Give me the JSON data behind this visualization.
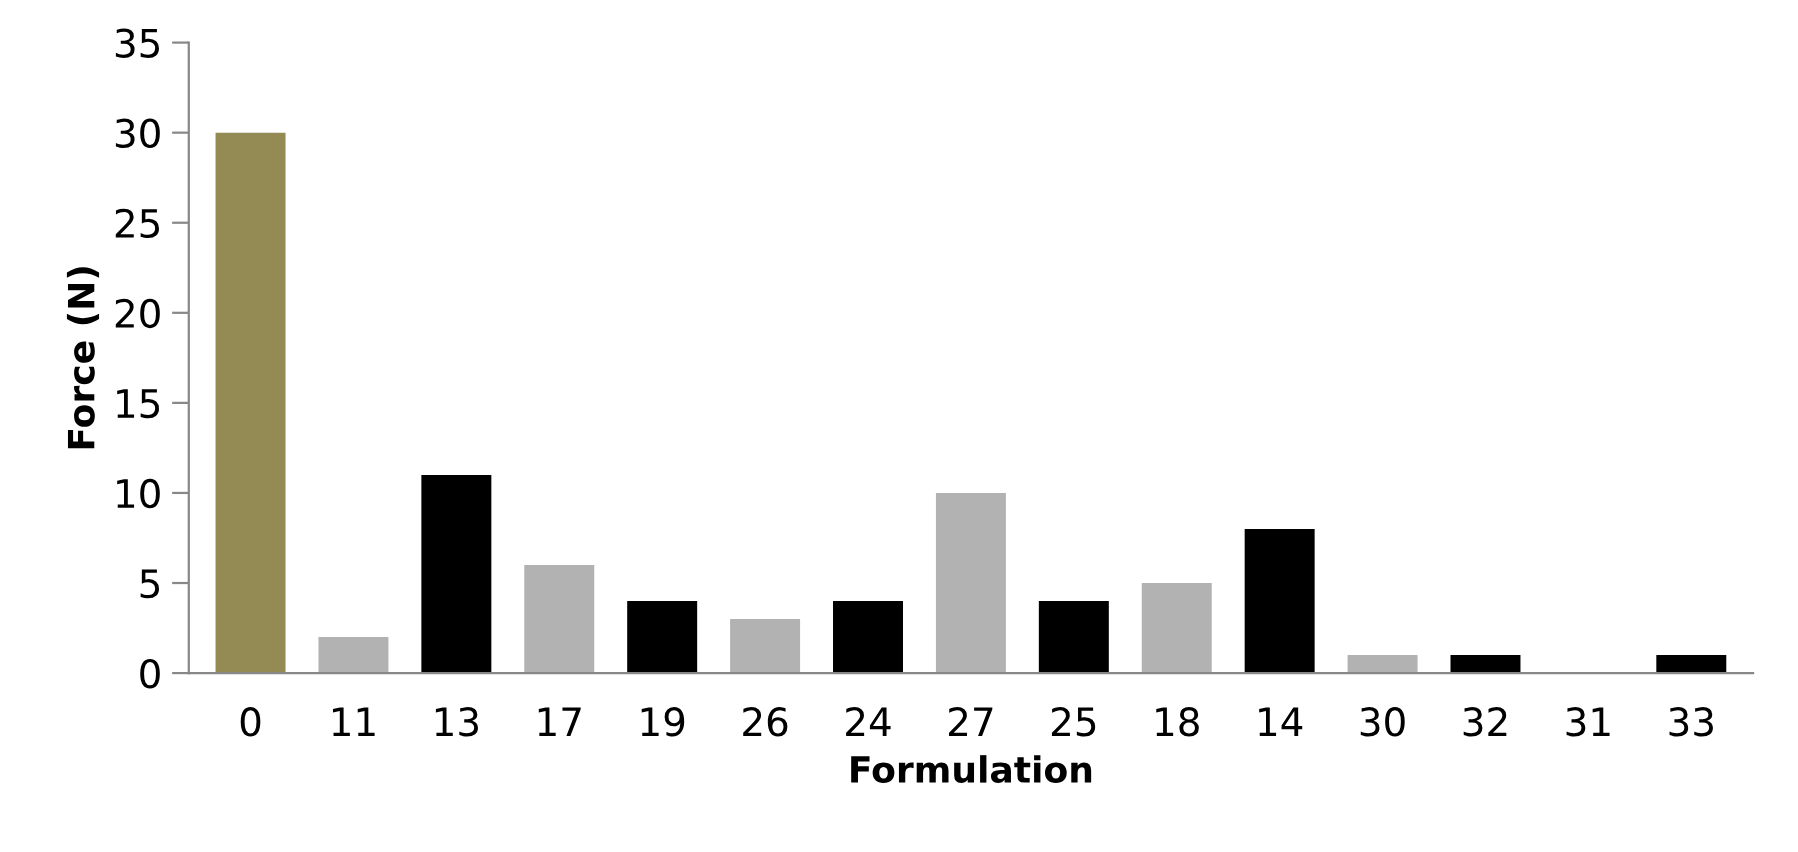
{
  "chart_data": {
    "type": "bar",
    "xlabel": "Formulation",
    "ylabel": "Force (N)",
    "categories": [
      "0",
      "11",
      "13",
      "17",
      "19",
      "26",
      "24",
      "27",
      "25",
      "18",
      "14",
      "30",
      "32",
      "31",
      "33"
    ],
    "values": [
      30,
      2,
      11,
      6,
      4,
      3,
      4,
      10,
      4,
      5,
      8,
      1,
      1,
      0,
      1
    ],
    "colors": [
      "#948a54",
      "#b2b2b2",
      "#000000",
      "#b2b2b2",
      "#000000",
      "#b2b2b2",
      "#000000",
      "#b2b2b2",
      "#000000",
      "#b2b2b2",
      "#000000",
      "#b2b2b2",
      "#000000",
      "#b2b2b2",
      "#000000"
    ],
    "ylim": [
      0,
      35
    ],
    "yticks": [
      0,
      5,
      10,
      15,
      20,
      25,
      30,
      35
    ],
    "grid": false,
    "legend": false
  }
}
